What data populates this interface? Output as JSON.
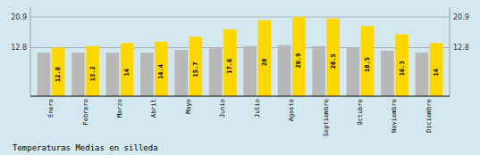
{
  "chart_data": {
    "type": "bar",
    "title": "Temperaturas Medias en silleda",
    "categories": [
      "Enero",
      "Febrero",
      "Marzo",
      "Abril",
      "Mayo",
      "Junio",
      "Julio",
      "Agosto",
      "Septiembre",
      "Octubre",
      "Noviembre",
      "Diciembre"
    ],
    "series": [
      {
        "color": "#B8B8B8",
        "values": [
          11.5,
          11.5,
          11.5,
          11.5,
          12.2,
          12.8,
          13.2,
          13.5,
          13.2,
          12.8,
          12.0,
          11.5
        ]
      },
      {
        "color": "#FFD700",
        "values": [
          12.8,
          13.2,
          14.0,
          14.4,
          15.7,
          17.6,
          20.0,
          20.9,
          20.5,
          18.5,
          16.3,
          14.0
        ],
        "data_labels": true
      }
    ],
    "ylim": [
      0,
      23.5
    ],
    "yticks": [
      12.8,
      20.9
    ],
    "y2lim": [
      0,
      23.5
    ],
    "y2ticks": [
      12.8,
      20.9
    ],
    "grid": true
  }
}
